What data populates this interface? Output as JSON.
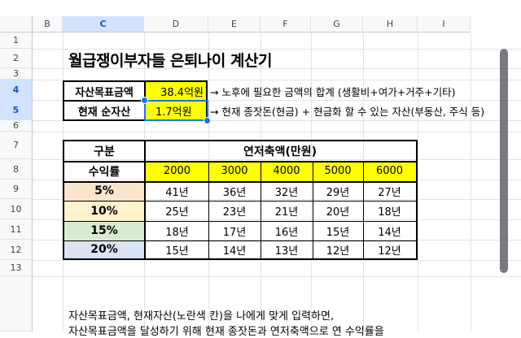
{
  "sheet": {
    "columns": [
      "B",
      "C",
      "D",
      "E",
      "F",
      "G",
      "H",
      "I"
    ],
    "rows": [
      "1",
      "2",
      "3",
      "4",
      "5",
      "6",
      "7",
      "8",
      "9",
      "10",
      "11",
      "12",
      "13"
    ]
  },
  "title": "월급쟁이부자들 은퇴나이 계산기",
  "inputs": {
    "goal_label": "자산목표금액",
    "goal_value": "38.4억원",
    "goal_note": "→ 노후에 필요한 금액의 합계 (생활비+여가+거주+기타)",
    "asset_label": "현재 순자산",
    "asset_value": "1.7억원",
    "asset_note": "→ 현재 종잣돈(현금) + 현금화 할 수 있는 자산(부동산, 주식 등)"
  },
  "table": {
    "corner_label": "구분",
    "group_header": "연저축액(만원)",
    "rate_header": "수익률",
    "savings": [
      "2000",
      "3000",
      "4000",
      "5000",
      "6000"
    ],
    "rows": [
      {
        "rate": "5%",
        "color": "#fce5cd",
        "values": [
          "41년",
          "36년",
          "32년",
          "29년",
          "27년"
        ]
      },
      {
        "rate": "10%",
        "color": "#fff2cc",
        "values": [
          "25년",
          "23년",
          "21년",
          "20년",
          "18년"
        ]
      },
      {
        "rate": "15%",
        "color": "#d9ead3",
        "values": [
          "18년",
          "17년",
          "16년",
          "15년",
          "14년"
        ]
      },
      {
        "rate": "20%",
        "color": "#dae3f3",
        "values": [
          "15년",
          "14년",
          "13년",
          "12년",
          "12년"
        ]
      }
    ]
  },
  "footer": {
    "line1": "자산목표금액, 현재자산(노란색 칸)을 나에게 맞게 입력하면,",
    "line2": "자산목표금액을 달성하기 위해 현재 종잣돈과 연저축액으로 연 수익률을"
  },
  "colors": {
    "selection": "#1a73e8",
    "highlight": "#ffff00",
    "header_bg": "#f8f9fa"
  }
}
